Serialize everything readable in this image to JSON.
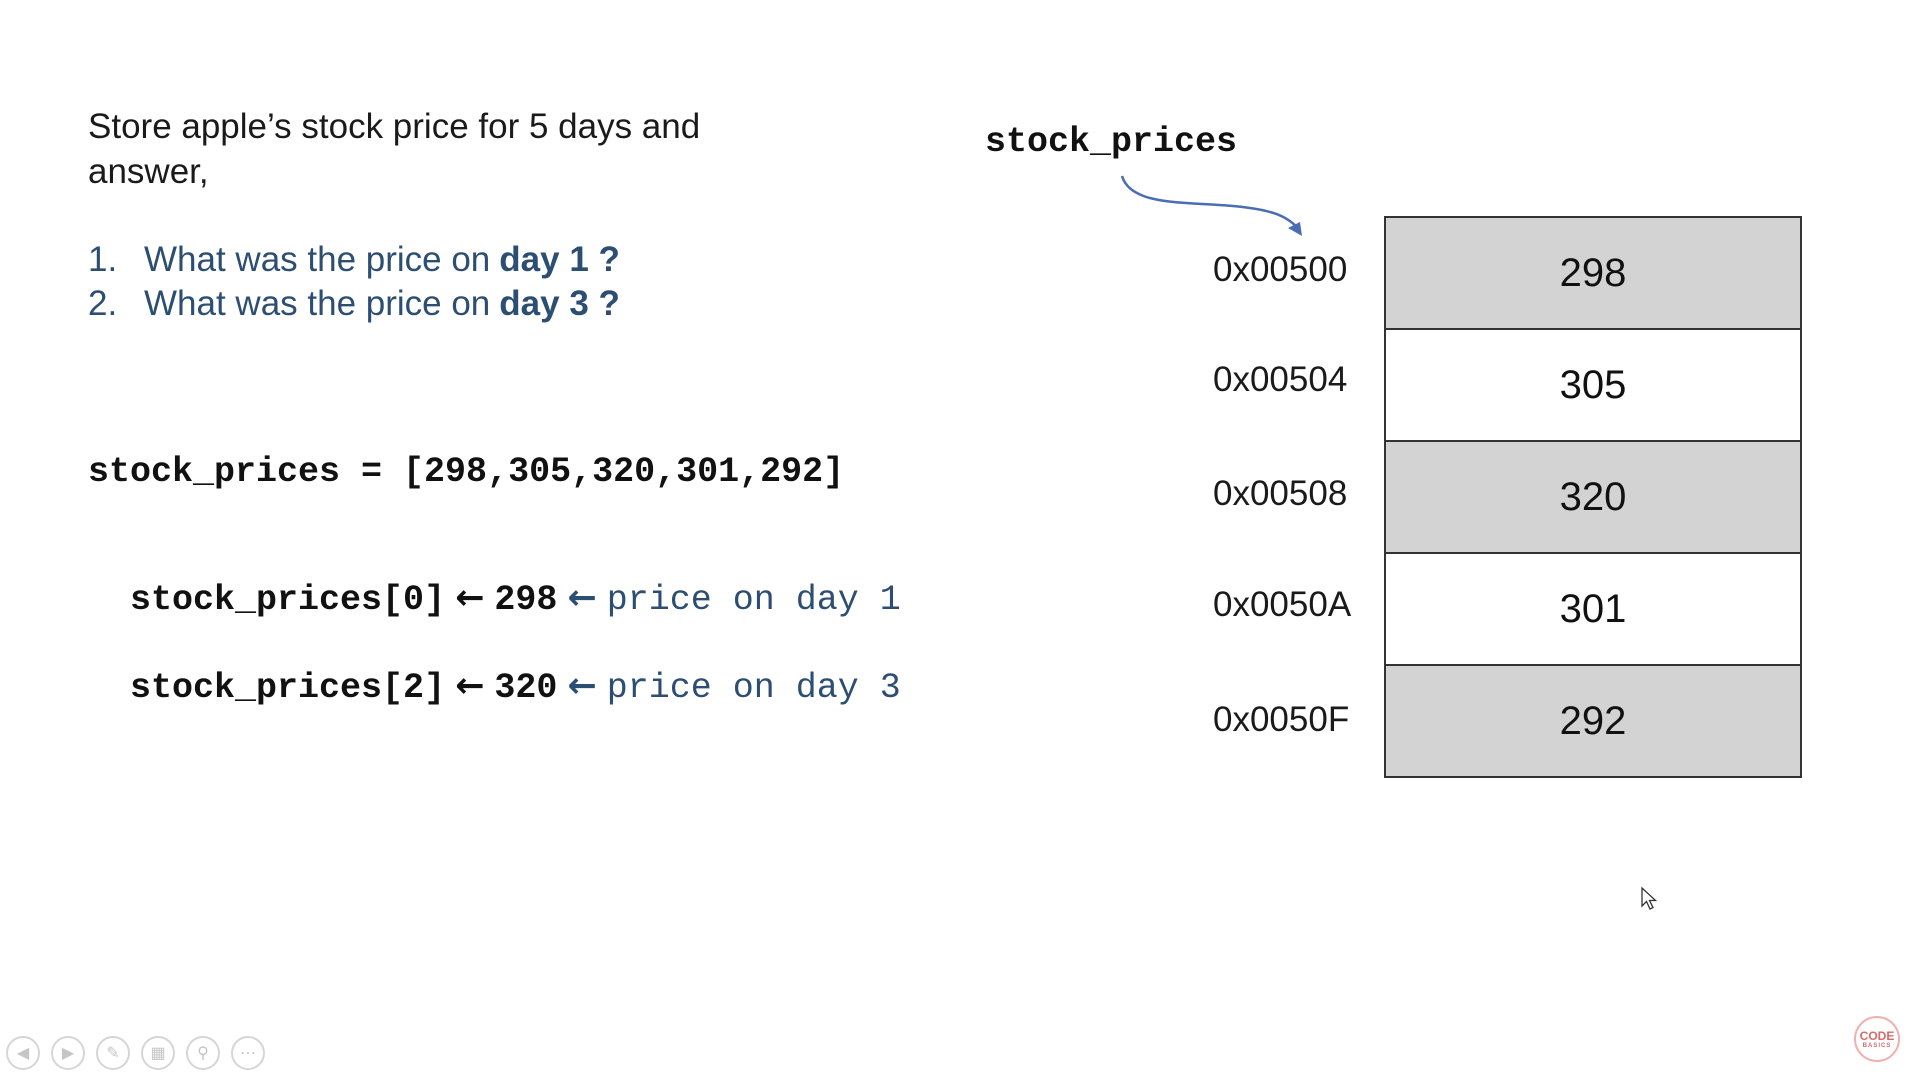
{
  "intro": {
    "line1": "Store apple’s stock price for 5 days and",
    "line2": "answer,"
  },
  "questions": [
    {
      "num": "1.",
      "text": "What was the price on ",
      "bold": "day 1 ?"
    },
    {
      "num": "2.",
      "text": "What was the price on ",
      "bold": "day 3 ?"
    }
  ],
  "code": {
    "assignment": "stock_prices = [298,305,320,301,292]",
    "access": [
      {
        "expr": "stock_prices[0]",
        "value": "298",
        "comment": "price on day 1"
      },
      {
        "expr": "stock_prices[2]",
        "value": "320",
        "comment": "price on day 3"
      }
    ],
    "arrow_glyph": "←"
  },
  "memory": {
    "variable": "stock_prices",
    "rows": [
      {
        "address": "0x00500",
        "value": "298",
        "shaded": true
      },
      {
        "address": "0x00504",
        "value": "305",
        "shaded": false
      },
      {
        "address": "0x00508",
        "value": "320",
        "shaded": true
      },
      {
        "address": "0x0050A",
        "value": "301",
        "shaded": false
      },
      {
        "address": "0x0050F",
        "value": "292",
        "shaded": true
      }
    ]
  },
  "toolbar": {
    "icons": [
      "previous-icon",
      "next-icon",
      "pen-icon",
      "slides-icon",
      "zoom-icon",
      "more-icon"
    ]
  },
  "logo": {
    "line1": "CODE",
    "line2": "BASICS"
  },
  "colors": {
    "accent_blue": "#2d4e73",
    "cell_shade": "#d3d3d3",
    "pointer_blue": "#4a6db3"
  }
}
